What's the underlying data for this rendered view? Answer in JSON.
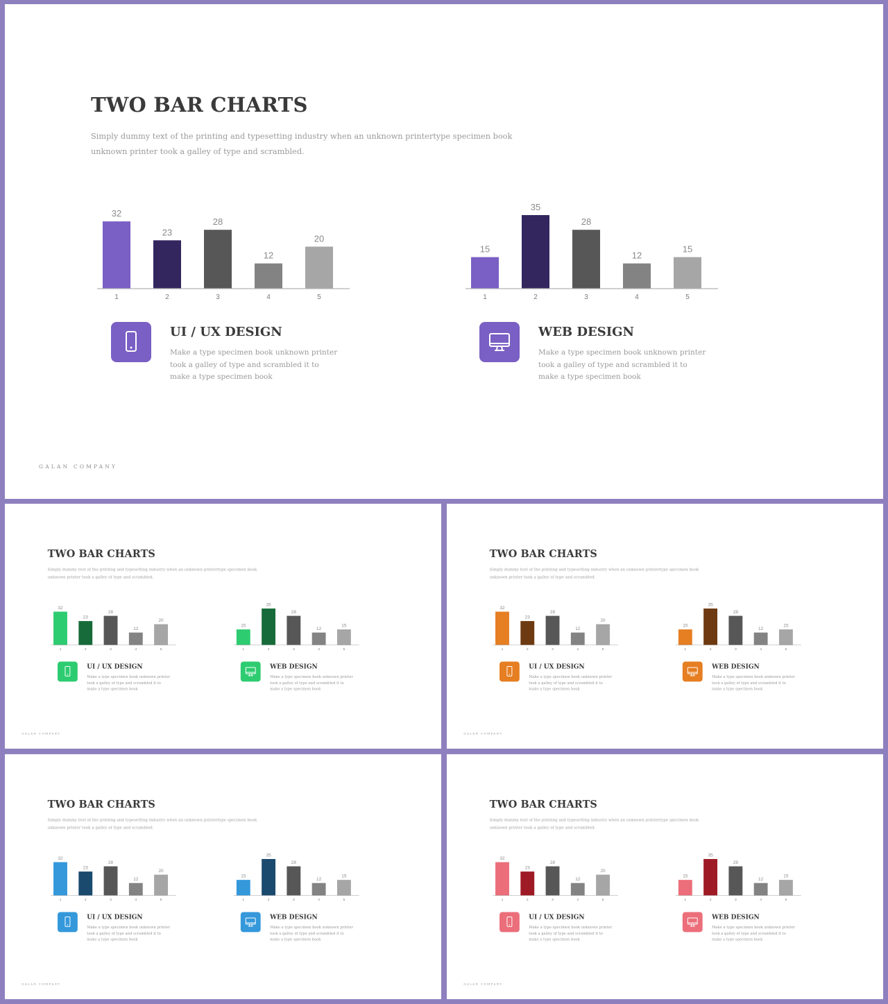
{
  "title": "TWO BAR CHARTS",
  "subtitle": "Simply dummy text of the printing and typesetting industry when an unknown printertype specimen book unknown printer took a galley of type and scrambled.",
  "footer": "GALAN COMPANY",
  "cards": [
    {
      "title": "UI / UX DESIGN",
      "text": "Make a type specimen book unknown printer took a galley of type and scrambled it to make a type specimen book",
      "icon": "smartphone-icon"
    },
    {
      "title": "WEB DESIGN",
      "text": "Make a type specimen book unknown printer took a galley of type and scrambled it to make a type specimen book",
      "icon": "monitor-icon"
    }
  ],
  "chart_data": [
    {
      "type": "bar",
      "categories": [
        "1",
        "2",
        "3",
        "4",
        "5"
      ],
      "values": [
        32,
        23,
        28,
        12,
        20
      ],
      "ylim": [
        0,
        35
      ],
      "grid": false
    },
    {
      "type": "bar",
      "categories": [
        "1",
        "2",
        "3",
        "4",
        "5"
      ],
      "values": [
        15,
        35,
        28,
        12,
        15
      ],
      "ylim": [
        0,
        35
      ],
      "grid": false
    }
  ],
  "themes": [
    {
      "name": "purple",
      "light": "#7a5fc4",
      "dark": "#33265f",
      "gray1": "#575757",
      "gray2": "#838383",
      "gray3": "#a6a6a6",
      "icon_bg": "#7a5fc4"
    },
    {
      "name": "green",
      "light": "#2ecc71",
      "dark": "#176b3a",
      "gray1": "#575757",
      "gray2": "#838383",
      "gray3": "#a6a6a6",
      "icon_bg": "#2ecc71"
    },
    {
      "name": "orange",
      "light": "#e67e22",
      "dark": "#6e3a12",
      "gray1": "#575757",
      "gray2": "#838383",
      "gray3": "#a6a6a6",
      "icon_bg": "#e67e22"
    },
    {
      "name": "blue",
      "light": "#3498db",
      "dark": "#1a4a6e",
      "gray1": "#575757",
      "gray2": "#838383",
      "gray3": "#a6a6a6",
      "icon_bg": "#3498db"
    },
    {
      "name": "red",
      "light": "#eb6e7a",
      "dark": "#9e1b25",
      "gray1": "#575757",
      "gray2": "#838383",
      "gray3": "#a6a6a6",
      "icon_bg": "#eb6e7a"
    }
  ]
}
